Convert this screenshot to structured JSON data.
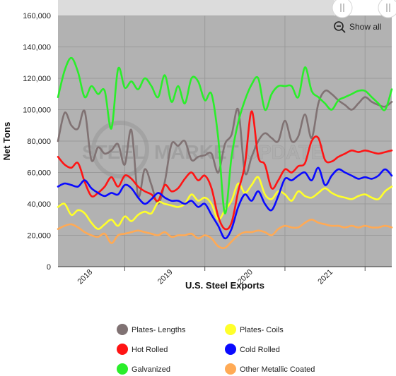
{
  "chart_data": {
    "type": "line",
    "title": "",
    "xlabel": "U.S. Steel Exports",
    "ylabel": "Net Tons",
    "ylim": [
      0,
      160000
    ],
    "yticks": [
      0,
      20000,
      40000,
      60000,
      80000,
      100000,
      120000,
      140000,
      160000
    ],
    "ytick_labels": [
      "0",
      "20,000",
      "40,000",
      "60,000",
      "80,000",
      "100,000",
      "120,000",
      "140,000",
      "160,000"
    ],
    "xlim": [
      "2017-03",
      "2021-05"
    ],
    "xtick_labels": [
      "2018",
      "2019",
      "2020",
      "2021"
    ],
    "grid": true,
    "legend_position": "bottom",
    "x": [
      "2017-03",
      "2017-04",
      "2017-05",
      "2017-06",
      "2017-07",
      "2017-08",
      "2017-09",
      "2017-10",
      "2017-11",
      "2017-12",
      "2018-01",
      "2018-02",
      "2018-03",
      "2018-04",
      "2018-05",
      "2018-06",
      "2018-07",
      "2018-08",
      "2018-09",
      "2018-10",
      "2018-11",
      "2018-12",
      "2019-01",
      "2019-02",
      "2019-03",
      "2019-04",
      "2019-05",
      "2019-06",
      "2019-07",
      "2019-08",
      "2019-09",
      "2019-10",
      "2019-11",
      "2019-12",
      "2020-01",
      "2020-02",
      "2020-03",
      "2020-04",
      "2020-05",
      "2020-06",
      "2020-07",
      "2020-08",
      "2020-09",
      "2020-10",
      "2020-11",
      "2020-12",
      "2021-01",
      "2021-02",
      "2021-03",
      "2021-04",
      "2021-05"
    ],
    "series": [
      {
        "name": "Plates- Lengths",
        "color": "#807273",
        "values": [
          80000,
          98000,
          90000,
          88000,
          99000,
          68000,
          76000,
          72000,
          74000,
          78000,
          65000,
          87000,
          45000,
          62000,
          52000,
          40000,
          54000,
          78000,
          77000,
          80000,
          68000,
          70000,
          71000,
          72000,
          60000,
          78000,
          84000,
          100000,
          60000,
          70000,
          80000,
          85000,
          82000,
          80000,
          93000,
          80000,
          83000,
          97000,
          82000,
          104000,
          112000,
          110000,
          106000,
          103000,
          100000,
          104000,
          108000,
          105000,
          103000,
          102000,
          105000
        ]
      },
      {
        "name": "Plates- Coils",
        "color": "#ffff2a",
        "values": [
          38000,
          40000,
          33000,
          36000,
          34000,
          28000,
          24000,
          27000,
          30000,
          26000,
          32000,
          29000,
          33000,
          35000,
          34000,
          41000,
          40000,
          39000,
          38000,
          40000,
          46000,
          42000,
          44000,
          40000,
          30000,
          36000,
          42000,
          53000,
          47000,
          52000,
          57000,
          46000,
          43000,
          48000,
          46000,
          42000,
          48000,
          45000,
          44000,
          47000,
          50000,
          47000,
          45000,
          44000,
          43000,
          45000,
          46000,
          44000,
          43000,
          48000,
          51000
        ]
      },
      {
        "name": "Hot Rolled",
        "color": "#ff1414",
        "values": [
          70000,
          65000,
          63000,
          66000,
          54000,
          45000,
          47000,
          51000,
          57000,
          51000,
          58000,
          56000,
          51000,
          48000,
          46000,
          42000,
          52000,
          48000,
          50000,
          56000,
          60000,
          55000,
          58000,
          50000,
          32000,
          24000,
          28000,
          48000,
          65000,
          99000,
          70000,
          65000,
          50000,
          55000,
          62000,
          60000,
          64000,
          66000,
          80000,
          82000,
          68000,
          67000,
          70000,
          72000,
          74000,
          73000,
          74000,
          73000,
          72000,
          73000,
          74000
        ]
      },
      {
        "name": "Cold Rolled",
        "color": "#0a0aff",
        "values": [
          51000,
          53000,
          52000,
          51000,
          55000,
          50000,
          47000,
          45000,
          47000,
          46000,
          52000,
          50000,
          44000,
          40000,
          43000,
          47000,
          44000,
          42000,
          42000,
          40000,
          42000,
          38000,
          40000,
          33000,
          26000,
          18000,
          24000,
          38000,
          46000,
          42000,
          48000,
          40000,
          36000,
          45000,
          56000,
          55000,
          58000,
          60000,
          55000,
          63000,
          52000,
          58000,
          62000,
          60000,
          58000,
          56000,
          57000,
          56000,
          58000,
          62000,
          58000
        ]
      },
      {
        "name": "Galvanized",
        "color": "#2aee2a",
        "values": [
          108000,
          125000,
          133000,
          124000,
          108000,
          115000,
          110000,
          112000,
          88000,
          126000,
          114000,
          118000,
          113000,
          120000,
          115000,
          108000,
          122000,
          105000,
          115000,
          104000,
          120000,
          118000,
          106000,
          110000,
          82000,
          34000,
          70000,
          92000,
          106000,
          116000,
          120000,
          100000,
          110000,
          115000,
          115000,
          115000,
          108000,
          127000,
          112000,
          108000,
          104000,
          100000,
          106000,
          108000,
          110000,
          112000,
          112000,
          108000,
          104000,
          100000,
          113000
        ]
      },
      {
        "name": "Other Metallic Coated",
        "color": "#ffaa55",
        "values": [
          24000,
          26000,
          27000,
          25000,
          22000,
          20000,
          19000,
          21000,
          15000,
          20000,
          21000,
          22000,
          23000,
          22000,
          21000,
          20000,
          22000,
          19000,
          20000,
          20000,
          21000,
          18000,
          20000,
          18000,
          13000,
          12000,
          16000,
          20000,
          22000,
          22000,
          23000,
          22000,
          20000,
          24000,
          26000,
          25000,
          25000,
          28000,
          30000,
          28000,
          27000,
          26000,
          26000,
          25000,
          26000,
          25000,
          26000,
          25000,
          25000,
          26000,
          25000
        ]
      }
    ]
  },
  "toolbar": {
    "show_all_label": "Show all",
    "search_icon": "zoom-out-icon",
    "slider_handle_icon": "grip-handle-icon"
  },
  "watermark": {
    "text_left": "STEEL",
    "text_mid": "MARKET",
    "text_right": "UPDATE"
  }
}
